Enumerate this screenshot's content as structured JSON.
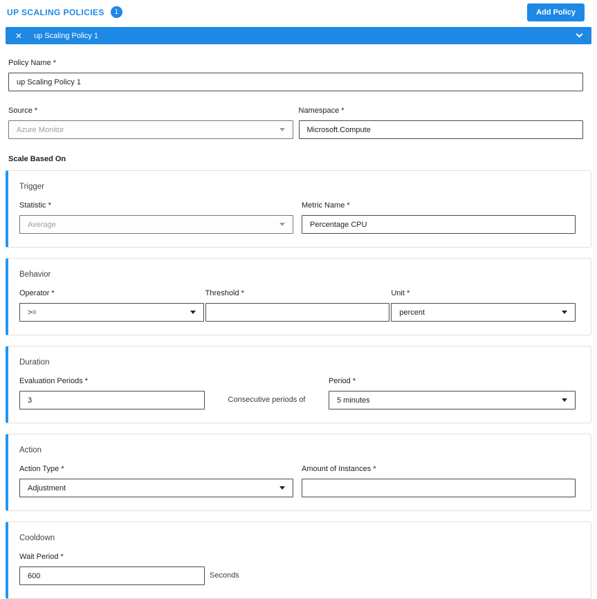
{
  "page": {
    "title": "UP SCALING POLICIES",
    "badge_count": "1",
    "add_policy_label": "Add Policy"
  },
  "policy_bar": {
    "close_icon": "✕",
    "title": "up Scaling Policy 1"
  },
  "form": {
    "policy_name": {
      "label": "Policy Name *",
      "value": "up Scaling Policy 1"
    },
    "source": {
      "label": "Source *",
      "value": "Azure Monitor"
    },
    "namespace": {
      "label": "Namespace *",
      "value": "Microsoft.Compute"
    },
    "scale_based_on_label": "Scale Based On",
    "trigger": {
      "heading": "Trigger",
      "statistic": {
        "label": "Statistic *",
        "value": "Average"
      },
      "metric_name": {
        "label": "Metric Name *",
        "value": "Percentage CPU"
      }
    },
    "behavior": {
      "heading": "Behavior",
      "operator": {
        "label": "Operator *",
        "value": ">="
      },
      "threshold": {
        "label": "Threshold *",
        "value": ""
      },
      "unit": {
        "label": "Unit *",
        "value": "percent"
      }
    },
    "duration": {
      "heading": "Duration",
      "evaluation_periods": {
        "label": "Evaluation Periods *",
        "value": "3"
      },
      "consecutive_text": "Consecutive periods of",
      "period": {
        "label": "Period *",
        "value": "5 minutes"
      }
    },
    "action": {
      "heading": "Action",
      "action_type": {
        "label": "Action Type *",
        "value": "Adjustment"
      },
      "amount_of_instances": {
        "label": "Amount of Instances *",
        "value": ""
      }
    },
    "cooldown": {
      "heading": "Cooldown",
      "wait_period": {
        "label": "Wait Period *",
        "value": "600"
      },
      "seconds_label": "Seconds"
    }
  },
  "colors": {
    "accent_blue": "#1e88e5",
    "accent_border": "#2196f3"
  }
}
